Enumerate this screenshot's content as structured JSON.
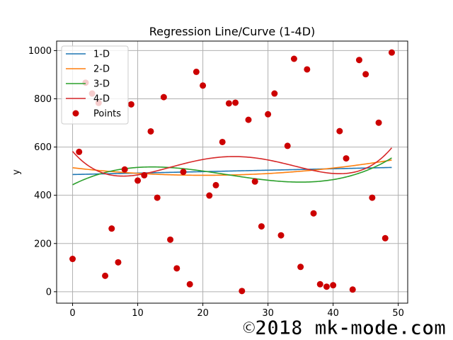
{
  "chart_data": {
    "type": "scatter",
    "title": "Regression Line/Curve (1-4D)",
    "xlabel": "",
    "ylabel": "y",
    "xlim": [
      -2.45,
      51.45
    ],
    "ylim": [
      -47.45,
      1039.45
    ],
    "xticks": [
      0,
      10,
      20,
      30,
      40,
      50
    ],
    "yticks": [
      0,
      200,
      400,
      600,
      800,
      1000
    ],
    "grid": true,
    "legend_position": "top-left",
    "points": {
      "name": "Points",
      "color": "#cc0000",
      "x": [
        0,
        1,
        2,
        3,
        4,
        5,
        6,
        7,
        8,
        9,
        10,
        11,
        12,
        13,
        14,
        15,
        16,
        17,
        18,
        19,
        20,
        21,
        22,
        23,
        24,
        25,
        26,
        27,
        28,
        29,
        30,
        31,
        32,
        33,
        34,
        35,
        36,
        37,
        38,
        39,
        40,
        41,
        42,
        43,
        44,
        45,
        46,
        47,
        48,
        49
      ],
      "y": [
        136,
        580,
        867,
        822,
        783,
        66,
        262,
        122,
        507,
        777,
        461,
        483,
        665,
        390,
        807,
        216,
        97,
        497,
        31,
        912,
        855,
        399,
        442,
        621,
        781,
        784,
        3,
        713,
        457,
        271,
        736,
        822,
        234,
        605,
        966,
        103,
        922,
        325,
        31,
        21,
        27,
        666,
        553,
        9,
        961,
        902,
        390,
        701,
        222,
        992
      ]
    },
    "series": [
      {
        "name": "1-D",
        "color": "#1f77b4",
        "x_range": [
          0,
          49
        ],
        "coefficients": [
          486,
          0.6
        ]
      },
      {
        "name": "2-D",
        "color": "#ff7f0e",
        "x_range": [
          0,
          49
        ],
        "coefficients": [
          514.15,
          -3.09,
          0.0764
        ]
      },
      {
        "name": "3-D",
        "color": "#2ca02c",
        "x_range": [
          0,
          49
        ],
        "coefficients": [
          443.5,
          13.68,
          -0.7542,
          0.01064
        ]
      },
      {
        "name": "4-D",
        "color": "#d62728",
        "x_range": [
          0,
          49
        ],
        "coefficients": [
          582.2,
          -31.44,
          3.045,
          -0.09784,
          0.0009983
        ]
      }
    ]
  },
  "watermark": "©2018 mk-mode.com"
}
